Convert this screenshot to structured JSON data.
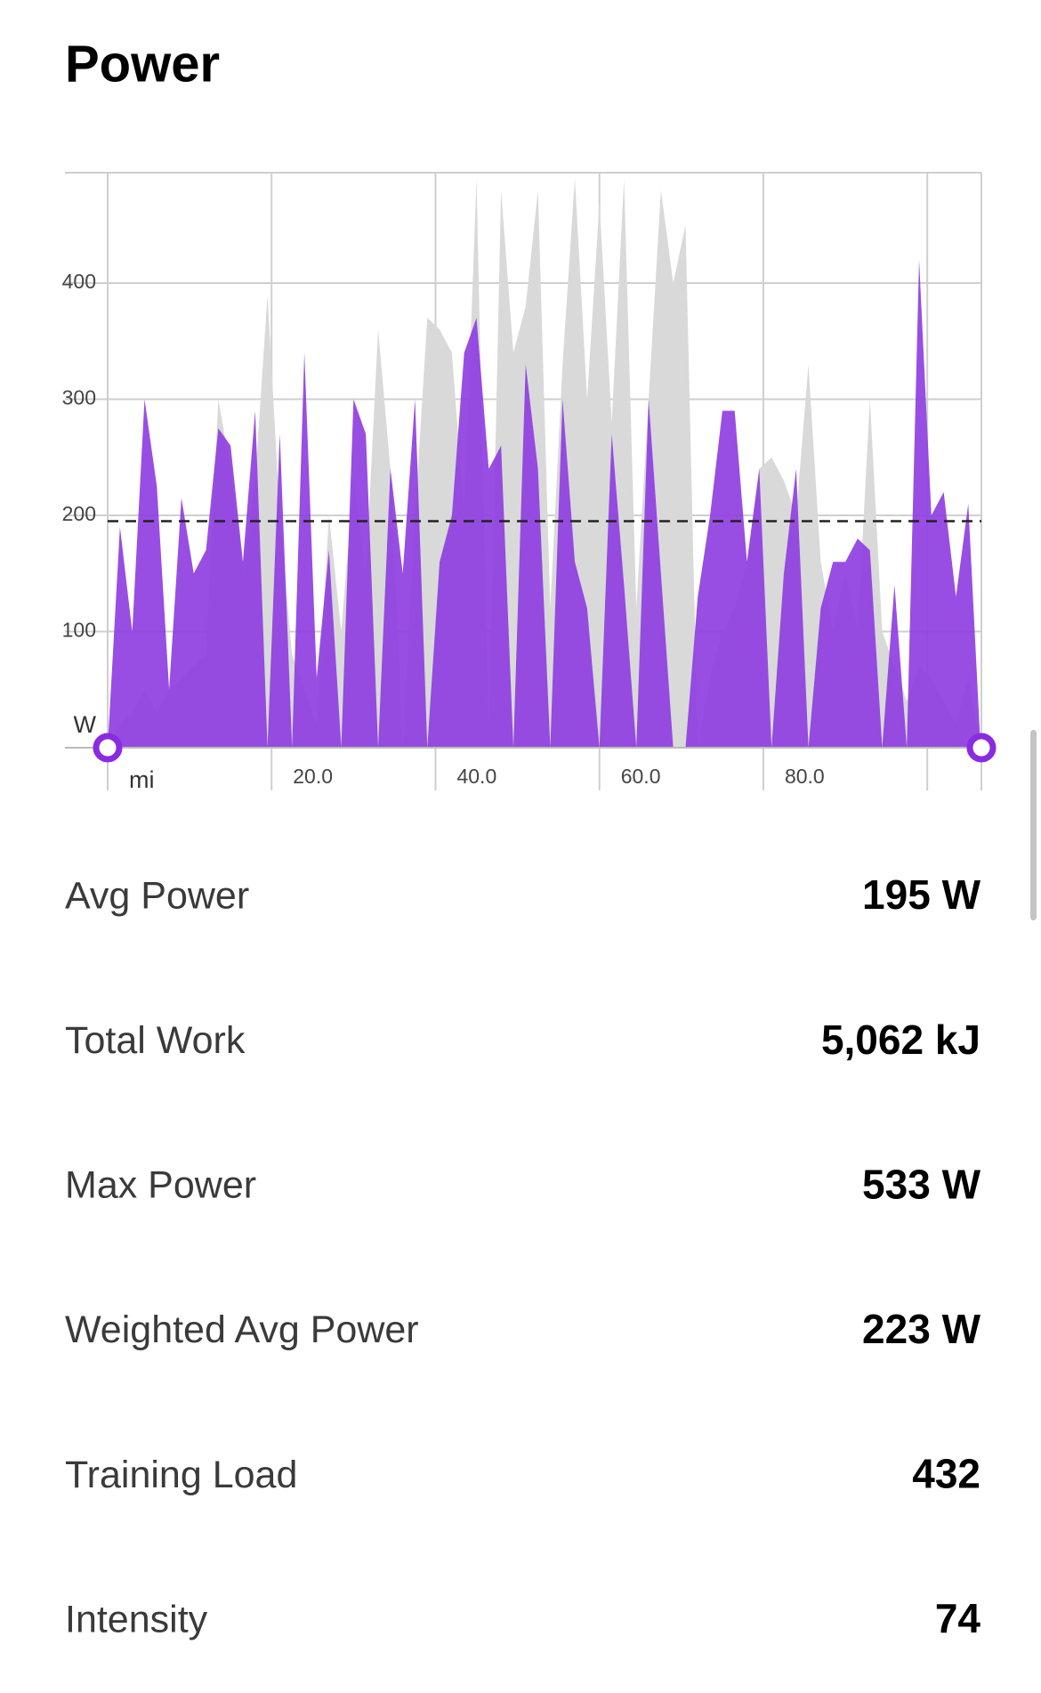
{
  "header": {
    "title": "Power"
  },
  "chart_data": {
    "type": "area",
    "xlabel": "mi",
    "ylabel": "W",
    "x": [
      0,
      1.5,
      3,
      4.5,
      6,
      7.5,
      9,
      10.5,
      12,
      13.5,
      15,
      16.5,
      18,
      19.5,
      21,
      22.5,
      24,
      25.5,
      27,
      28.5,
      30,
      31.5,
      33,
      34.5,
      36,
      37.5,
      39,
      40.5,
      42,
      43.5,
      45,
      46.5,
      48,
      49.5,
      51,
      52.5,
      54,
      55.5,
      57,
      58.5,
      60,
      61.5,
      63,
      64.5,
      66,
      67.5,
      69,
      70.5,
      72,
      73.5,
      75,
      76.5,
      78,
      79.5,
      81,
      82.5,
      84,
      85.5,
      87,
      88.5,
      90,
      91.5,
      93,
      94.5,
      96,
      97.5,
      99,
      100.5,
      102,
      103.5,
      105,
      106.5
    ],
    "series": [
      {
        "color": "#d9d9d9",
        "values": [
          0,
          20,
          30,
          50,
          30,
          50,
          60,
          70,
          80,
          300,
          240,
          150,
          230,
          390,
          200,
          80,
          50,
          20,
          200,
          100,
          230,
          150,
          360,
          240,
          0,
          200,
          370,
          360,
          340,
          200,
          490,
          0,
          480,
          340,
          380,
          480,
          120,
          330,
          490,
          300,
          470,
          280,
          490,
          120,
          300,
          480,
          400,
          450,
          0,
          60,
          100,
          120,
          160,
          240,
          250,
          230,
          200,
          330,
          160,
          100,
          150,
          100,
          300,
          100,
          70,
          40,
          70,
          60,
          40,
          20,
          60,
          0
        ]
      },
      {
        "color": "#8f3fe0",
        "values": [
          0,
          190,
          100,
          300,
          225,
          50,
          215,
          150,
          170,
          275,
          260,
          160,
          290,
          0,
          270,
          0,
          340,
          60,
          170,
          0,
          300,
          270,
          0,
          240,
          150,
          300,
          0,
          160,
          200,
          340,
          370,
          240,
          260,
          0,
          330,
          240,
          0,
          300,
          160,
          120,
          0,
          270,
          140,
          0,
          300,
          150,
          0,
          0,
          130,
          200,
          290,
          290,
          160,
          240,
          0,
          150,
          240,
          0,
          120,
          160,
          160,
          180,
          170,
          0,
          140,
          0,
          420,
          200,
          220,
          130,
          210,
          0
        ]
      }
    ],
    "avg_line": 195,
    "xlim": [
      0,
      106.6
    ],
    "ylim": [
      0,
      495
    ],
    "xticks": [
      {
        "value": 0,
        "label": null
      },
      {
        "value": 20,
        "label": "20.0"
      },
      {
        "value": 40,
        "label": "40.0"
      },
      {
        "value": 60,
        "label": "60.0"
      },
      {
        "value": 80,
        "label": "80.0"
      },
      {
        "value": 100,
        "label": null
      },
      {
        "value": 106.6,
        "label": null
      }
    ],
    "yticks": [
      {
        "value": 0,
        "label": null
      },
      100,
      200,
      300,
      400,
      {
        "value": 495,
        "label": null
      }
    ],
    "grid": true
  },
  "stats": [
    {
      "label": "Avg Power",
      "value": "195 W"
    },
    {
      "label": "Total Work",
      "value": "5,062 kJ"
    },
    {
      "label": "Max Power",
      "value": "533 W"
    },
    {
      "label": "Weighted Avg Power",
      "value": "223 W"
    },
    {
      "label": "Training Load",
      "value": "432"
    },
    {
      "label": "Intensity",
      "value": "74"
    }
  ]
}
